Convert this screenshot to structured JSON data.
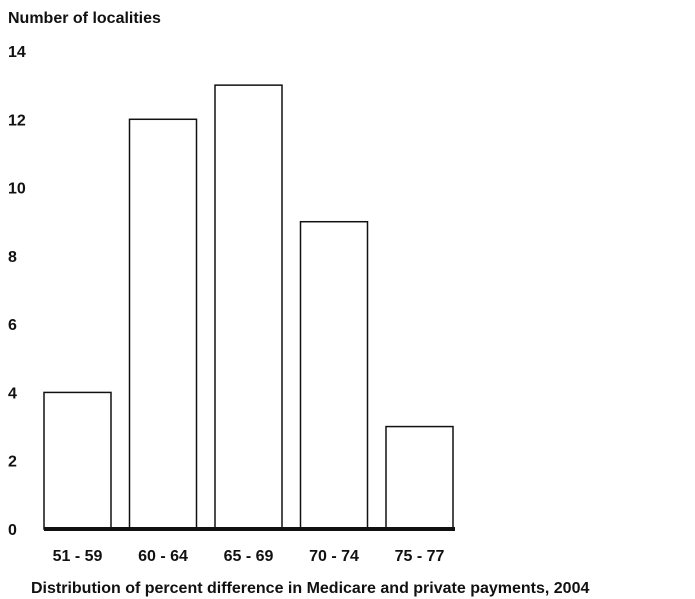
{
  "chart_data": {
    "type": "bar",
    "ylabel": "Number of localities",
    "xlabel": "Distribution of percent difference in Medicare and private payments, 2004",
    "categories": [
      "51 - 59",
      "60 - 64",
      "65 - 69",
      "70 - 74",
      "75 - 77"
    ],
    "values": [
      4,
      12,
      13,
      9,
      3
    ],
    "ylim": [
      0,
      14
    ],
    "yticks": [
      "0",
      "2",
      "4",
      "6",
      "8",
      "10",
      "12",
      "14"
    ],
    "grid": false,
    "legend": "none",
    "colors": {
      "bar_fill": "#ffffff",
      "bar_stroke": "#111111",
      "text": "#111111"
    }
  }
}
